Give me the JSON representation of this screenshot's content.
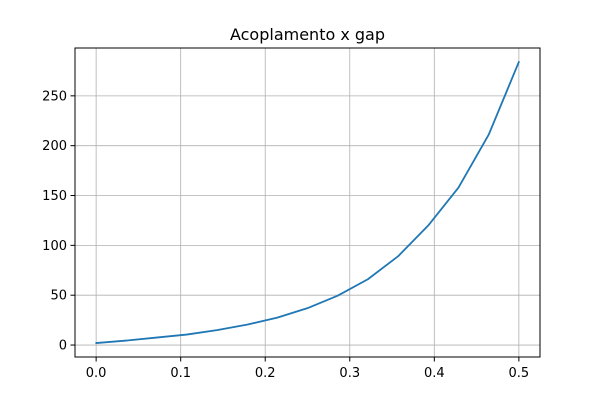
{
  "chart_data": {
    "type": "line",
    "title": "Acoplamento x gap",
    "xlabel": "",
    "ylabel": "",
    "xlim": [
      -0.025,
      0.525
    ],
    "ylim": [
      -12,
      298
    ],
    "grid": true,
    "x_ticks": [
      0.0,
      0.1,
      0.2,
      0.3,
      0.4,
      0.5
    ],
    "x_tick_labels": [
      "0.0",
      "0.1",
      "0.2",
      "0.3",
      "0.4",
      "0.5"
    ],
    "y_ticks": [
      0,
      50,
      100,
      150,
      200,
      250
    ],
    "y_tick_labels": [
      "0",
      "50",
      "100",
      "150",
      "200",
      "250"
    ],
    "series": [
      {
        "color": "#1f77b4",
        "x": [
          0.0,
          0.0357,
          0.0714,
          0.1071,
          0.1429,
          0.1786,
          0.2143,
          0.25,
          0.2857,
          0.3214,
          0.3571,
          0.3929,
          0.4286,
          0.4643,
          0.5
        ],
        "y": [
          2,
          4.5,
          7.5,
          10.5,
          15,
          20.5,
          27.5,
          37,
          49.5,
          66,
          89,
          120,
          158,
          211,
          284
        ]
      }
    ]
  }
}
